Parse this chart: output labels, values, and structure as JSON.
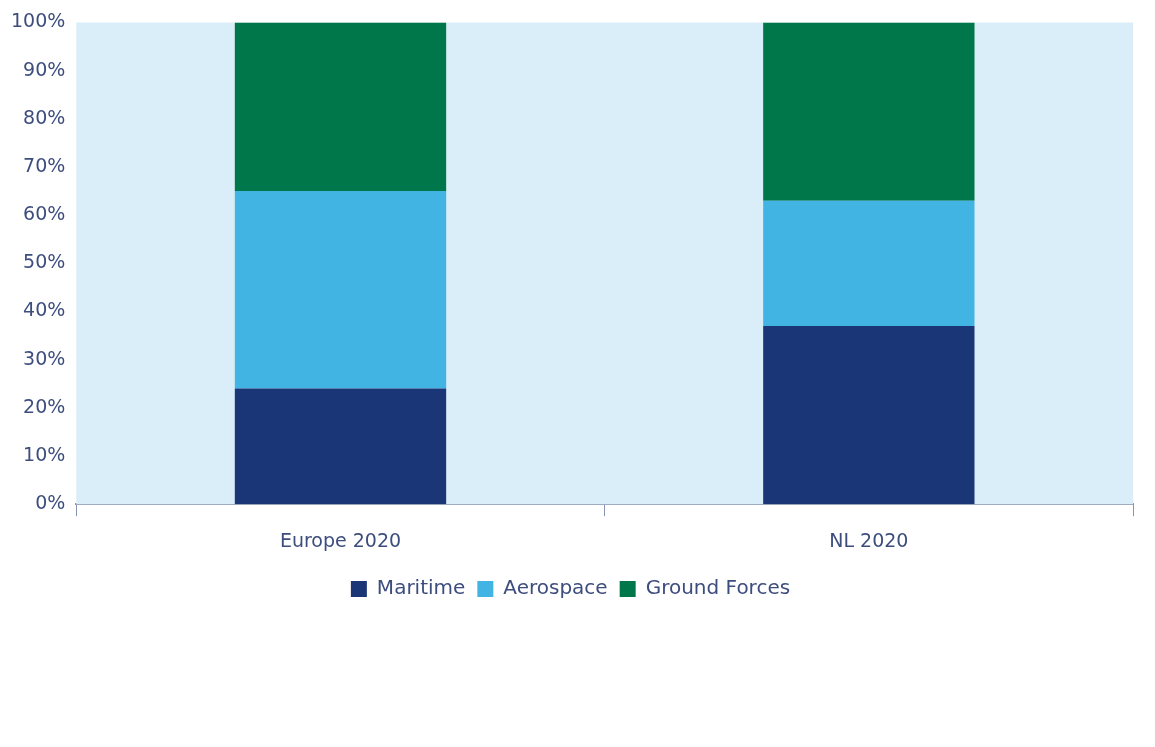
{
  "chart_data": {
    "type": "bar",
    "stacked": true,
    "categories": [
      "Europe 2020",
      "NL 2020"
    ],
    "series": [
      {
        "name": "Maritime",
        "color": "#1b3676",
        "values": [
          24,
          37
        ]
      },
      {
        "name": "Aerospace",
        "color": "#42b4e4",
        "values": [
          41,
          26
        ]
      },
      {
        "name": "Ground Forces",
        "color": "#00774a",
        "values": [
          35,
          37
        ]
      }
    ],
    "ylim": [
      0,
      100
    ],
    "yticks": [
      {
        "value": 0,
        "label": "0%"
      },
      {
        "value": 10,
        "label": "10%"
      },
      {
        "value": 20,
        "label": "20%"
      },
      {
        "value": 30,
        "label": "30%"
      },
      {
        "value": 40,
        "label": "40%"
      },
      {
        "value": 50,
        "label": "50%"
      },
      {
        "value": 60,
        "label": "60%"
      },
      {
        "value": 70,
        "label": "70%"
      },
      {
        "value": 80,
        "label": "80%"
      },
      {
        "value": 90,
        "label": "90%"
      },
      {
        "value": 100,
        "label": "100%"
      }
    ],
    "grid": false,
    "legend": "bottom"
  }
}
